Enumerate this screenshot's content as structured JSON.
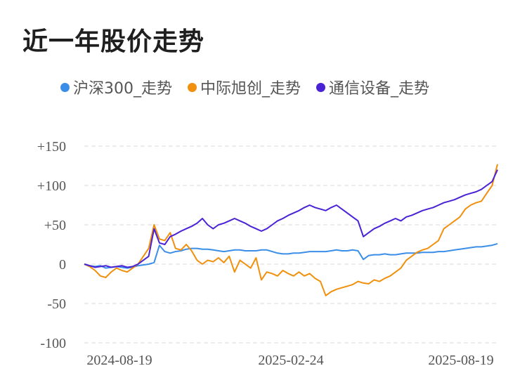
{
  "chart_data": {
    "type": "line",
    "title": "近一年股价走势",
    "xlabel": "",
    "ylabel": "",
    "ylim": [
      -100,
      150
    ],
    "y_ticks": [
      150,
      100,
      50,
      0,
      -50,
      -100
    ],
    "y_tick_labels": [
      "+150",
      "+100",
      "+50",
      "0",
      "-50",
      "-100"
    ],
    "x_tick_labels": [
      "2024-08-19",
      "2025-02-24",
      "2025-08-19"
    ],
    "grid": true,
    "legend_position": "top",
    "series": [
      {
        "name": "沪深300_走势",
        "color": "#3b8ee8",
        "values": [
          0,
          -2,
          -3,
          -2,
          -5,
          -4,
          -3,
          -4,
          -5,
          -4,
          -2,
          -1,
          0,
          2,
          24,
          16,
          14,
          16,
          17,
          19,
          20,
          20,
          19,
          19,
          18,
          17,
          16,
          17,
          18,
          18,
          17,
          17,
          17,
          18,
          18,
          16,
          14,
          13,
          13,
          14,
          14,
          15,
          16,
          16,
          16,
          16,
          17,
          18,
          17,
          17,
          18,
          17,
          6,
          11,
          12,
          12,
          13,
          12,
          12,
          13,
          14,
          14,
          14,
          15,
          15,
          15,
          16,
          16,
          17,
          18,
          19,
          20,
          21,
          22,
          22,
          23,
          24,
          26
        ]
      },
      {
        "name": "中际旭创_走势",
        "color": "#f0900c",
        "values": [
          0,
          -3,
          -8,
          -15,
          -17,
          -10,
          -5,
          -8,
          -10,
          -5,
          0,
          10,
          20,
          50,
          32,
          30,
          40,
          20,
          18,
          25,
          17,
          5,
          0,
          5,
          3,
          8,
          2,
          10,
          -10,
          5,
          0,
          -5,
          8,
          -20,
          -10,
          -12,
          -15,
          -8,
          -12,
          -15,
          -10,
          -15,
          -12,
          -18,
          -22,
          -40,
          -35,
          -32,
          -30,
          -28,
          -26,
          -22,
          -24,
          -25,
          -20,
          -22,
          -18,
          -15,
          -10,
          -5,
          5,
          10,
          15,
          18,
          20,
          25,
          30,
          45,
          50,
          55,
          60,
          70,
          75,
          78,
          80,
          90,
          100,
          127
        ]
      },
      {
        "name": "通信设备_走势",
        "color": "#4a22d6",
        "values": [
          0,
          -2,
          -4,
          -3,
          -2,
          -4,
          -3,
          -2,
          -4,
          -3,
          0,
          5,
          10,
          45,
          27,
          25,
          35,
          38,
          42,
          45,
          48,
          52,
          58,
          50,
          45,
          50,
          52,
          55,
          58,
          55,
          52,
          48,
          45,
          42,
          45,
          50,
          55,
          58,
          62,
          65,
          68,
          72,
          75,
          72,
          70,
          68,
          72,
          75,
          70,
          65,
          60,
          55,
          35,
          40,
          45,
          48,
          52,
          55,
          58,
          55,
          60,
          62,
          65,
          68,
          70,
          72,
          75,
          78,
          80,
          82,
          85,
          88,
          90,
          92,
          95,
          100,
          105,
          120
        ]
      }
    ]
  }
}
